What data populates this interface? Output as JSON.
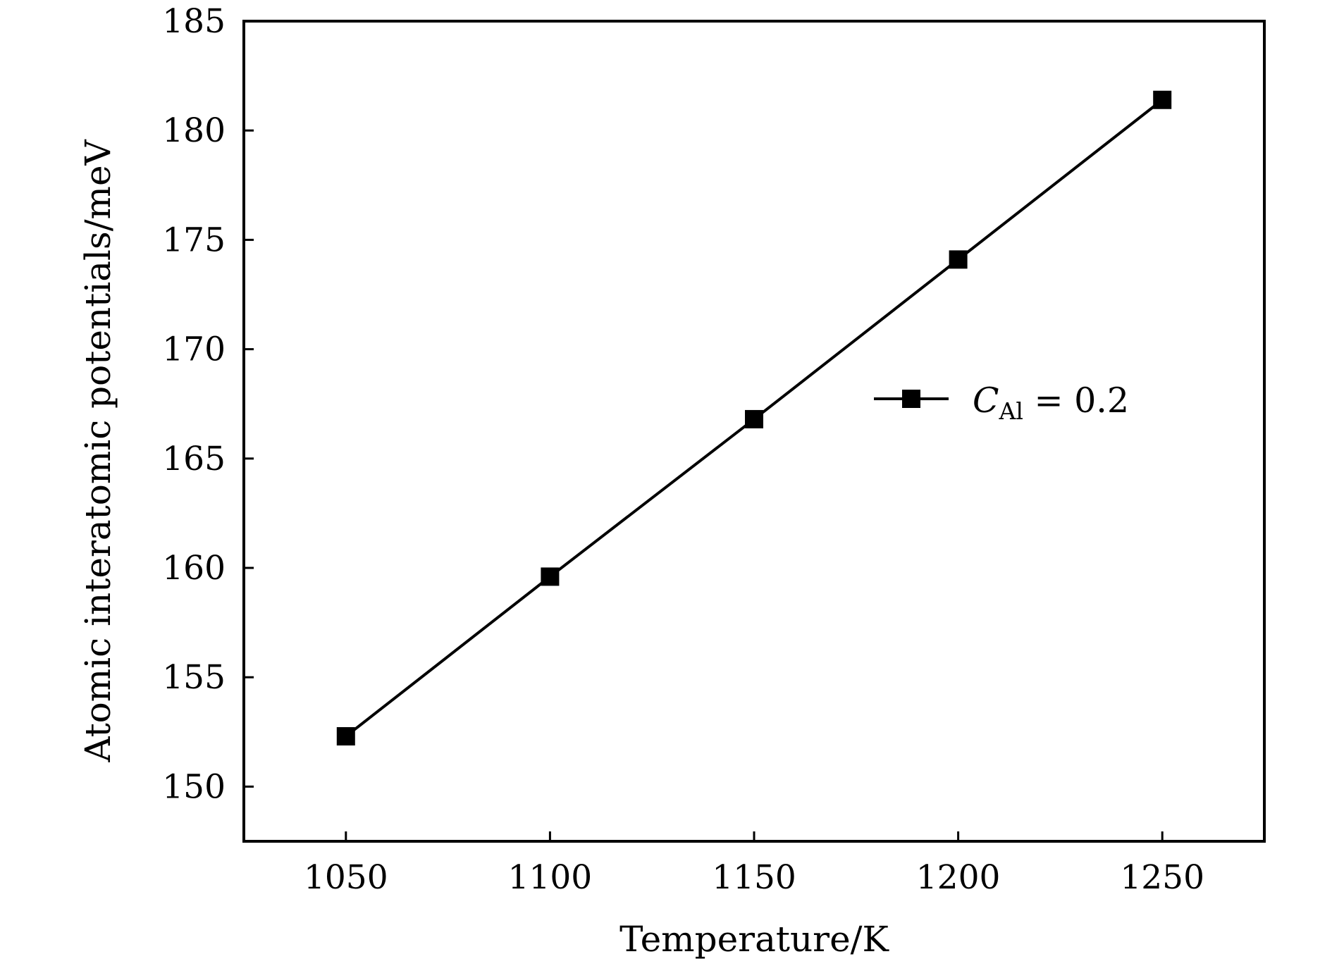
{
  "chart_data": {
    "type": "line",
    "xlabel": "Temperature/K",
    "ylabel": "Atomic interatomic potentials/meV",
    "xlim": [
      1025,
      1275
    ],
    "ylim": [
      147.5,
      185
    ],
    "xticks": [
      1050,
      1100,
      1150,
      1200,
      1250
    ],
    "yticks": [
      150,
      155,
      160,
      165,
      170,
      175,
      180,
      185
    ],
    "x": [
      1050,
      1100,
      1150,
      1200,
      1250
    ],
    "series": [
      {
        "name": "C_Al = 0.2",
        "legend_main": "C",
        "legend_sub": "Al",
        "legend_rest": " = 0.2",
        "marker": "square",
        "color": "#000000",
        "values": [
          152.3,
          159.6,
          166.8,
          174.1,
          181.4
        ]
      }
    ],
    "legend_position": "right-middle",
    "grid": false
  }
}
